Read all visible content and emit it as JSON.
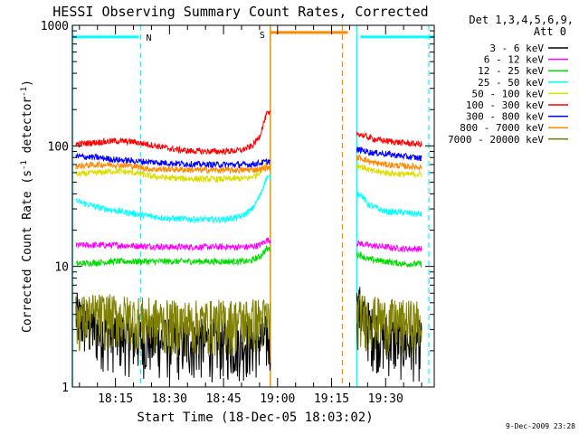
{
  "chart_data": {
    "type": "line",
    "title": "HESSI Observing Summary Count Rates, Corrected",
    "xlabel": "Start Time (18-Dec-05 18:03:02)",
    "ylabel_main": "Corrected Count Rate (s",
    "ylabel_sup1": "-1",
    "ylabel_mid": " detector",
    "ylabel_sup2": "-1",
    "ylabel_end": ")",
    "y_scale": "log",
    "ylim": [
      1,
      1000
    ],
    "y_ticks": [
      {
        "value": 1,
        "label": "1"
      },
      {
        "value": 10,
        "label": "10"
      },
      {
        "value": 100,
        "label": "100"
      },
      {
        "value": 1000,
        "label": "1000"
      }
    ],
    "xlim": [
      "18:03:02",
      "19:43:30"
    ],
    "x_ticks": [
      {
        "value": "18:15",
        "label": "18:15"
      },
      {
        "value": "18:30",
        "label": "18:30"
      },
      {
        "value": "18:45",
        "label": "18:45"
      },
      {
        "value": "19:00",
        "label": "19:00"
      },
      {
        "value": "19:15",
        "label": "19:15"
      },
      {
        "value": "19:30",
        "label": "19:30"
      }
    ],
    "legend_title_1": "Det 1,3,4,5,6,9,",
    "legend_title_2": "Att 0",
    "legend_placement": "right",
    "series": [
      {
        "name": "3 - 6 keV",
        "color": "#000000",
        "noise": 0.55,
        "x": [
          "18:04",
          "18:06",
          "18:10",
          "18:15",
          "18:20",
          "18:30",
          "18:40",
          "18:50",
          "18:56",
          "19:23",
          "19:26",
          "19:30",
          "19:35",
          "19:40"
        ],
        "y": [
          4.0,
          3.5,
          3.0,
          2.8,
          2.6,
          2.4,
          2.4,
          2.4,
          2.5,
          4.5,
          3.0,
          2.6,
          2.4,
          2.4
        ]
      },
      {
        "name": "6 - 12 keV",
        "color": "#ff00ff",
        "x": [
          "18:04",
          "18:15",
          "18:30",
          "18:45",
          "18:52",
          "18:55",
          "18:57",
          "19:23",
          "19:25",
          "19:30",
          "19:35",
          "19:40"
        ],
        "y": [
          15,
          15,
          14.5,
          14.5,
          14.5,
          15,
          16.5,
          15.5,
          15,
          14.5,
          14,
          14
        ]
      },
      {
        "name": "12 - 25 keV",
        "color": "#00dd00",
        "x": [
          "18:04",
          "18:15",
          "18:30",
          "18:45",
          "18:52",
          "18:55",
          "18:57",
          "19:23",
          "19:25",
          "19:30",
          "19:35",
          "19:40"
        ],
        "y": [
          10.5,
          11,
          11,
          11,
          11,
          12,
          14,
          12.5,
          11.5,
          11,
          10.5,
          10.5
        ]
      },
      {
        "name": "25 - 50 keV",
        "color": "#00ffff",
        "x": [
          "18:04",
          "18:10",
          "18:15",
          "18:20",
          "18:25",
          "18:30",
          "18:40",
          "18:45",
          "18:50",
          "18:53",
          "18:55",
          "18:57",
          "19:23",
          "19:25",
          "19:28",
          "19:30",
          "19:35",
          "19:40"
        ],
        "y": [
          35,
          31,
          29,
          27.5,
          26,
          25,
          24.5,
          24.5,
          26,
          30,
          38,
          55,
          40,
          33,
          30,
          28.5,
          28,
          27
        ]
      },
      {
        "name": "50 - 100 keV",
        "color": "#dddd00",
        "x": [
          "18:04",
          "18:10",
          "18:15",
          "18:20",
          "18:25",
          "18:30",
          "18:40",
          "18:45",
          "18:52",
          "18:54",
          "18:56",
          "18:57",
          "19:23",
          "19:26",
          "19:30",
          "19:35",
          "19:40"
        ],
        "y": [
          58,
          60,
          62,
          60,
          56,
          54,
          53,
          53,
          54,
          57,
          65,
          75,
          68,
          62,
          60,
          58,
          58
        ]
      },
      {
        "name": "100 - 300 keV",
        "color": "#ff0000",
        "x": [
          "18:04",
          "18:08",
          "18:15",
          "18:20",
          "18:25",
          "18:30",
          "18:35",
          "18:40",
          "18:45",
          "18:50",
          "18:53",
          "18:55",
          "18:56",
          "18:57",
          "19:23",
          "19:25",
          "19:28",
          "19:30",
          "19:35",
          "19:40"
        ],
        "y": [
          103,
          106,
          110,
          108,
          102,
          95,
          91,
          90,
          90,
          92,
          100,
          120,
          150,
          185,
          125,
          118,
          112,
          110,
          106,
          103
        ]
      },
      {
        "name": "300 - 800 keV",
        "color": "#0000ff",
        "x": [
          "18:04",
          "18:10",
          "18:15",
          "18:20",
          "18:30",
          "18:40",
          "18:45",
          "18:52",
          "18:55",
          "18:57",
          "19:23",
          "19:26",
          "19:30",
          "19:35",
          "19:40"
        ],
        "y": [
          82,
          80,
          77,
          75,
          72,
          70,
          70,
          70,
          72,
          74,
          93,
          88,
          86,
          82,
          79
        ]
      },
      {
        "name": "800 - 7000 keV",
        "color": "#ff8800",
        "x": [
          "18:04",
          "18:10",
          "18:15",
          "18:20",
          "18:25",
          "18:30",
          "18:40",
          "18:45",
          "18:50",
          "18:55",
          "18:57",
          "19:23",
          "19:26",
          "19:30",
          "19:35",
          "19:40"
        ],
        "y": [
          68,
          70,
          70,
          68,
          64,
          64,
          63,
          63,
          63,
          64,
          66,
          80,
          73,
          70,
          68,
          67
        ]
      },
      {
        "name": "7000 - 20000 keV",
        "color": "#808000",
        "noise": 0.5,
        "x": [
          "18:04",
          "18:10",
          "18:20",
          "18:30",
          "18:40",
          "18:50",
          "18:57",
          "19:23",
          "19:30",
          "19:35",
          "19:40"
        ],
        "y": [
          3.8,
          4.0,
          3.8,
          3.5,
          3.5,
          3.6,
          3.7,
          4.0,
          3.6,
          3.5,
          3.5
        ]
      }
    ],
    "annotations": {
      "saa_label": "N",
      "saa_times": [
        "18:03:02",
        "18:22"
      ],
      "night_label": "S",
      "night_times": [
        "18:58",
        "19:21"
      ],
      "gap_times": [
        "18:58",
        "19:22"
      ],
      "dashed_markers": [
        {
          "time": "18:22",
          "color": "#00ffff"
        },
        {
          "time": "19:18",
          "color": "#ff8800"
        },
        {
          "time": "19:42",
          "color": "#00ffff"
        }
      ],
      "solid_markers": [
        {
          "time": "18:03:02",
          "color": "#00ffff"
        },
        {
          "time": "18:58",
          "color": "#dd9900"
        },
        {
          "time": "19:22",
          "color": "#00ffff"
        }
      ],
      "bar_level": 800
    },
    "colors": {
      "cyan": "#00ffff",
      "orange": "#ff8800",
      "gold": "#dd9900"
    }
  },
  "footer_date": "9-Dec-2009 23:28"
}
